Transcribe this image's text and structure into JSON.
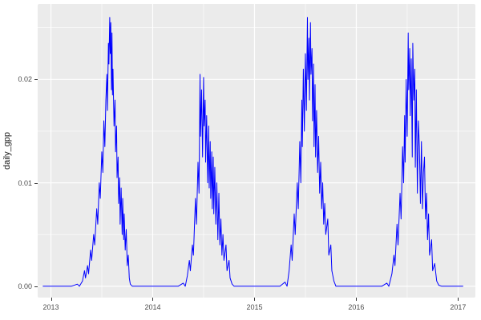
{
  "theme": {
    "panel_background": "#EBEBEB",
    "grid_color": "#FFFFFF",
    "axis_text_color": "#4D4D4D",
    "axis_title_color": "#1a1a1a",
    "tick_mark_color": "#333333",
    "outer_background": "#FFFFFF"
  },
  "chart_data": {
    "type": "line",
    "title": "",
    "xlabel": "",
    "ylabel": "daily_gpp",
    "legend": false,
    "grid": true,
    "line_color": "#0000FF",
    "xlim": [
      2012.87,
      2017.17
    ],
    "ylim": [
      -0.0011,
      0.0273
    ],
    "x_ticks": {
      "values": [
        2013,
        2014,
        2015,
        2016,
        2017
      ],
      "labels": [
        "2013",
        "2014",
        "2015",
        "2016",
        "2017"
      ]
    },
    "y_ticks": {
      "values": [
        0.0,
        0.01,
        0.02
      ],
      "labels": [
        "0.00",
        "0.01",
        "0.02"
      ]
    },
    "x_minor": [
      2013.5,
      2014.5,
      2015.5,
      2016.5,
      2017.0
    ],
    "y_minor": [
      0.005,
      0.015,
      0.025
    ],
    "series": [
      {
        "name": "daily_gpp",
        "points": [
          [
            2012.92,
            0
          ],
          [
            2013.0,
            0
          ],
          [
            2013.1,
            0
          ],
          [
            2013.2,
            0
          ],
          [
            2013.26,
            0.0002
          ],
          [
            2013.28,
            0
          ],
          [
            2013.31,
            0.0005
          ],
          [
            2013.33,
            0.0015
          ],
          [
            2013.34,
            0.0008
          ],
          [
            2013.36,
            0.002
          ],
          [
            2013.37,
            0.0012
          ],
          [
            2013.39,
            0.0035
          ],
          [
            2013.4,
            0.0025
          ],
          [
            2013.42,
            0.005
          ],
          [
            2013.43,
            0.004
          ],
          [
            2013.45,
            0.0075
          ],
          [
            2013.46,
            0.006
          ],
          [
            2013.475,
            0.01
          ],
          [
            2013.485,
            0.0085
          ],
          [
            2013.5,
            0.013
          ],
          [
            2013.51,
            0.011
          ],
          [
            2013.52,
            0.016
          ],
          [
            2013.53,
            0.0135
          ],
          [
            2013.54,
            0.018
          ],
          [
            2013.55,
            0.0205
          ],
          [
            2013.555,
            0.017
          ],
          [
            2013.565,
            0.0235
          ],
          [
            2013.57,
            0.0215
          ],
          [
            2013.578,
            0.026
          ],
          [
            2013.583,
            0.0225
          ],
          [
            2013.588,
            0.0255
          ],
          [
            2013.595,
            0.019
          ],
          [
            2013.6,
            0.0245
          ],
          [
            2013.605,
            0.0185
          ],
          [
            2013.61,
            0.021
          ],
          [
            2013.62,
            0.0155
          ],
          [
            2013.63,
            0.018
          ],
          [
            2013.635,
            0.013
          ],
          [
            2013.645,
            0.0155
          ],
          [
            2013.65,
            0.0105
          ],
          [
            2013.66,
            0.0125
          ],
          [
            2013.665,
            0.008
          ],
          [
            2013.675,
            0.0105
          ],
          [
            2013.68,
            0.006
          ],
          [
            2013.69,
            0.0095
          ],
          [
            2013.7,
            0.005
          ],
          [
            2013.705,
            0.0085
          ],
          [
            2013.715,
            0.0045
          ],
          [
            2013.72,
            0.007
          ],
          [
            2013.73,
            0.0035
          ],
          [
            2013.74,
            0.0055
          ],
          [
            2013.75,
            0.002
          ],
          [
            2013.76,
            0.003
          ],
          [
            2013.77,
            0.0008
          ],
          [
            2013.78,
            0.0002
          ],
          [
            2013.8,
            0
          ],
          [
            2013.9,
            0
          ],
          [
            2014.0,
            0
          ],
          [
            2014.15,
            0
          ],
          [
            2014.25,
            0
          ],
          [
            2014.3,
            0.0003
          ],
          [
            2014.32,
            0
          ],
          [
            2014.34,
            0.001
          ],
          [
            2014.36,
            0.0025
          ],
          [
            2014.37,
            0.0015
          ],
          [
            2014.39,
            0.004
          ],
          [
            2014.4,
            0.003
          ],
          [
            2014.42,
            0.0085
          ],
          [
            2014.43,
            0.006
          ],
          [
            2014.445,
            0.012
          ],
          [
            2014.455,
            0.009
          ],
          [
            2014.465,
            0.0205
          ],
          [
            2014.47,
            0.0145
          ],
          [
            2014.48,
            0.019
          ],
          [
            2014.49,
            0.0125
          ],
          [
            2014.5,
            0.0202
          ],
          [
            2014.505,
            0.0155
          ],
          [
            2014.515,
            0.018
          ],
          [
            2014.52,
            0.012
          ],
          [
            2014.53,
            0.0165
          ],
          [
            2014.54,
            0.01
          ],
          [
            2014.55,
            0.0155
          ],
          [
            2014.555,
            0.0095
          ],
          [
            2014.565,
            0.014
          ],
          [
            2014.57,
            0.0085
          ],
          [
            2014.58,
            0.013
          ],
          [
            2014.585,
            0.0075
          ],
          [
            2014.595,
            0.0125
          ],
          [
            2014.6,
            0.007
          ],
          [
            2014.61,
            0.0115
          ],
          [
            2014.62,
            0.006
          ],
          [
            2014.63,
            0.01
          ],
          [
            2014.64,
            0.0045
          ],
          [
            2014.65,
            0.009
          ],
          [
            2014.66,
            0.004
          ],
          [
            2014.67,
            0.0065
          ],
          [
            2014.68,
            0.003
          ],
          [
            2014.69,
            0.005
          ],
          [
            2014.7,
            0.0025
          ],
          [
            2014.72,
            0.004
          ],
          [
            2014.73,
            0.0015
          ],
          [
            2014.75,
            0.0025
          ],
          [
            2014.76,
            0.0008
          ],
          [
            2014.78,
            0.0002
          ],
          [
            2014.8,
            0
          ],
          [
            2014.9,
            0
          ],
          [
            2015.0,
            0
          ],
          [
            2015.15,
            0
          ],
          [
            2015.25,
            0
          ],
          [
            2015.3,
            0.0004
          ],
          [
            2015.32,
            0
          ],
          [
            2015.34,
            0.0015
          ],
          [
            2015.36,
            0.004
          ],
          [
            2015.37,
            0.0025
          ],
          [
            2015.39,
            0.007
          ],
          [
            2015.4,
            0.005
          ],
          [
            2015.42,
            0.01
          ],
          [
            2015.43,
            0.0075
          ],
          [
            2015.445,
            0.014
          ],
          [
            2015.455,
            0.01
          ],
          [
            2015.465,
            0.018
          ],
          [
            2015.47,
            0.0135
          ],
          [
            2015.48,
            0.021
          ],
          [
            2015.49,
            0.015
          ],
          [
            2015.5,
            0.0225
          ],
          [
            2015.51,
            0.017
          ],
          [
            2015.52,
            0.026
          ],
          [
            2015.525,
            0.02
          ],
          [
            2015.535,
            0.024
          ],
          [
            2015.54,
            0.018
          ],
          [
            2015.55,
            0.0255
          ],
          [
            2015.555,
            0.0205
          ],
          [
            2015.565,
            0.023
          ],
          [
            2015.57,
            0.016
          ],
          [
            2015.58,
            0.0215
          ],
          [
            2015.585,
            0.0135
          ],
          [
            2015.595,
            0.0195
          ],
          [
            2015.6,
            0.0125
          ],
          [
            2015.61,
            0.017
          ],
          [
            2015.62,
            0.011
          ],
          [
            2015.63,
            0.0145
          ],
          [
            2015.64,
            0.009
          ],
          [
            2015.65,
            0.012
          ],
          [
            2015.66,
            0.0075
          ],
          [
            2015.67,
            0.01
          ],
          [
            2015.68,
            0.006
          ],
          [
            2015.69,
            0.008
          ],
          [
            2015.7,
            0.005
          ],
          [
            2015.72,
            0.0065
          ],
          [
            2015.73,
            0.003
          ],
          [
            2015.75,
            0.004
          ],
          [
            2015.76,
            0.0015
          ],
          [
            2015.78,
            0.0005
          ],
          [
            2015.8,
            0
          ],
          [
            2015.9,
            0
          ],
          [
            2016.0,
            0
          ],
          [
            2016.15,
            0
          ],
          [
            2016.25,
            0
          ],
          [
            2016.3,
            0.0003
          ],
          [
            2016.32,
            0
          ],
          [
            2016.35,
            0.0012
          ],
          [
            2016.37,
            0.003
          ],
          [
            2016.38,
            0.002
          ],
          [
            2016.4,
            0.006
          ],
          [
            2016.41,
            0.004
          ],
          [
            2016.43,
            0.009
          ],
          [
            2016.44,
            0.0065
          ],
          [
            2016.455,
            0.0135
          ],
          [
            2016.465,
            0.01
          ],
          [
            2016.475,
            0.0165
          ],
          [
            2016.48,
            0.012
          ],
          [
            2016.49,
            0.02
          ],
          [
            2016.5,
            0.0145
          ],
          [
            2016.51,
            0.0245
          ],
          [
            2016.515,
            0.019
          ],
          [
            2016.525,
            0.023
          ],
          [
            2016.53,
            0.0165
          ],
          [
            2016.54,
            0.022
          ],
          [
            2016.55,
            0.0125
          ],
          [
            2016.555,
            0.0235
          ],
          [
            2016.565,
            0.018
          ],
          [
            2016.575,
            0.021
          ],
          [
            2016.58,
            0.0115
          ],
          [
            2016.59,
            0.019
          ],
          [
            2016.6,
            0.009
          ],
          [
            2016.61,
            0.016
          ],
          [
            2016.62,
            0.0135
          ],
          [
            2016.63,
            0.008
          ],
          [
            2016.64,
            0.014
          ],
          [
            2016.65,
            0.0075
          ],
          [
            2016.66,
            0.011
          ],
          [
            2016.67,
            0.0125
          ],
          [
            2016.68,
            0.0065
          ],
          [
            2016.69,
            0.009
          ],
          [
            2016.7,
            0.0045
          ],
          [
            2016.71,
            0.007
          ],
          [
            2016.72,
            0.003
          ],
          [
            2016.74,
            0.0045
          ],
          [
            2016.75,
            0.0015
          ],
          [
            2016.77,
            0.0022
          ],
          [
            2016.79,
            0.0005
          ],
          [
            2016.81,
            0.0001
          ],
          [
            2016.84,
            0
          ],
          [
            2016.9,
            0
          ],
          [
            2017.0,
            0
          ],
          [
            2017.05,
            0
          ]
        ]
      }
    ]
  }
}
